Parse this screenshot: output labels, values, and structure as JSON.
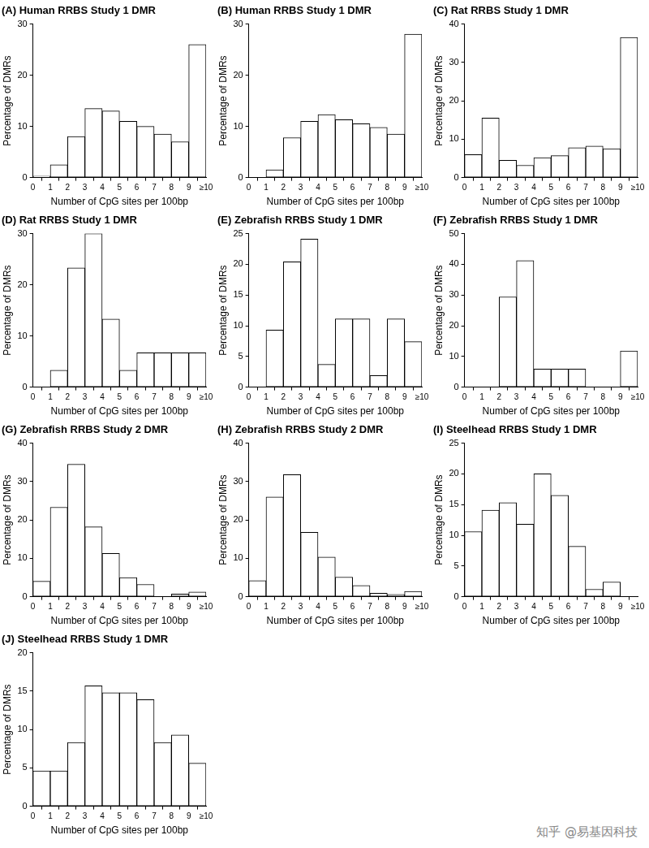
{
  "chart_data": [
    {
      "type": "histogram",
      "panel_label": "(A)",
      "title": "Human RRBS Study 1 DMR",
      "xlabel": "Number of CpG sites per 100bp",
      "ylabel": "Percentage of DMRs",
      "bins": [
        0,
        1,
        2,
        3,
        4,
        5,
        6,
        7,
        8,
        9,
        10
      ],
      "values": [
        0.3,
        2.5,
        8,
        13.5,
        13,
        11,
        10,
        8.5,
        7,
        26
      ],
      "color": "#ffffff",
      "xlim": [
        0,
        10
      ],
      "xticks": [
        0,
        1,
        2,
        3,
        4,
        5,
        6,
        7,
        8,
        9,
        {
          "value": 10,
          "label": "≥10"
        }
      ],
      "ylim": [
        0,
        30
      ],
      "yticks": [
        0,
        10,
        20,
        30
      ],
      "grid": false
    },
    {
      "type": "histogram",
      "panel_label": "(B)",
      "title": "Human RRBS Study 1 DMR",
      "xlabel": "Number of CpG sites per 100bp",
      "ylabel": "Percentage of DMRs",
      "bins": [
        0,
        1,
        2,
        3,
        4,
        5,
        6,
        7,
        8,
        9,
        10
      ],
      "values": [
        0,
        1.5,
        7.8,
        11,
        12.3,
        11.3,
        10.5,
        9.8,
        8.5,
        28
      ],
      "color": "#ffffff",
      "xlim": [
        0,
        10
      ],
      "xticks": [
        0,
        1,
        2,
        3,
        4,
        5,
        6,
        7,
        8,
        9,
        {
          "value": 10,
          "label": "≥10"
        }
      ],
      "ylim": [
        0,
        30
      ],
      "yticks": [
        0,
        10,
        20,
        30
      ],
      "grid": false
    },
    {
      "type": "histogram",
      "panel_label": "(C)",
      "title": "Rat RRBS Study 1 DMR",
      "xlabel": "Number of CpG sites per 100bp",
      "ylabel": "Percentage of DMRs",
      "bins": [
        0,
        1,
        2,
        3,
        4,
        5,
        6,
        7,
        8,
        9,
        10
      ],
      "values": [
        6,
        15.5,
        4.5,
        3.2,
        5.2,
        5.7,
        7.8,
        8.2,
        7.5,
        36.5
      ],
      "color": "#ffffff",
      "xlim": [
        0,
        10
      ],
      "xticks": [
        0,
        1,
        2,
        3,
        4,
        5,
        6,
        7,
        8,
        9,
        {
          "value": 10,
          "label": "≥10"
        }
      ],
      "ylim": [
        0,
        40
      ],
      "yticks": [
        0,
        10,
        20,
        30,
        40
      ],
      "grid": false
    },
    {
      "type": "histogram",
      "panel_label": "(D)",
      "title": "Rat RRBS Study 1 DMR",
      "xlabel": "Number of CpG sites per 100bp",
      "ylabel": "Percentage of DMRs",
      "bins": [
        0,
        1,
        2,
        3,
        4,
        5,
        6,
        7,
        8,
        9,
        10
      ],
      "values": [
        0,
        3.3,
        23.3,
        30,
        13.3,
        3.3,
        6.7,
        6.7,
        6.7,
        6.7
      ],
      "color": "#ffffff",
      "xlim": [
        0,
        10
      ],
      "xticks": [
        0,
        1,
        2,
        3,
        4,
        5,
        6,
        7,
        8,
        9,
        {
          "value": 10,
          "label": "≥10"
        }
      ],
      "ylim": [
        0,
        30
      ],
      "yticks": [
        0,
        10,
        20,
        30
      ],
      "grid": false
    },
    {
      "type": "histogram",
      "panel_label": "(E)",
      "title": "Zebrafish RRBS Study 1 DMR",
      "xlabel": "Number of CpG sites per 100bp",
      "ylabel": "Percentage of DMRs",
      "bins": [
        0,
        1,
        2,
        3,
        4,
        5,
        6,
        7,
        8,
        9,
        10
      ],
      "values": [
        0,
        9.3,
        20.4,
        24.1,
        3.7,
        11.1,
        11.1,
        1.9,
        11.1,
        7.4
      ],
      "color": "#ffffff",
      "xlim": [
        0,
        10
      ],
      "xticks": [
        0,
        1,
        2,
        3,
        4,
        5,
        6,
        7,
        8,
        9,
        {
          "value": 10,
          "label": "≥10"
        }
      ],
      "ylim": [
        0,
        25
      ],
      "yticks": [
        0,
        5,
        10,
        15,
        20,
        25
      ],
      "grid": false
    },
    {
      "type": "histogram",
      "panel_label": "(F)",
      "title": "Zebrafish RRBS Study 1 DMR",
      "xlabel": "Number of CpG sites per 100bp",
      "ylabel": "Percentage of DMRs",
      "bins": [
        0,
        1,
        2,
        3,
        4,
        5,
        6,
        7,
        8,
        9,
        10
      ],
      "values": [
        0,
        0,
        29.4,
        41.2,
        5.9,
        5.9,
        5.9,
        0,
        0,
        11.8
      ],
      "color": "#ffffff",
      "xlim": [
        0,
        10
      ],
      "xticks": [
        0,
        1,
        2,
        3,
        4,
        5,
        6,
        7,
        8,
        9,
        {
          "value": 10,
          "label": "≥10"
        }
      ],
      "ylim": [
        0,
        50
      ],
      "yticks": [
        0,
        10,
        20,
        30,
        40,
        50
      ],
      "grid": false
    },
    {
      "type": "histogram",
      "panel_label": "(G)",
      "title": "Zebrafish RRBS Study 2 DMR",
      "xlabel": "Number of CpG sites per 100bp",
      "ylabel": "Percentage of DMRs",
      "bins": [
        0,
        1,
        2,
        3,
        4,
        5,
        6,
        7,
        8,
        9,
        10
      ],
      "values": [
        4,
        23.3,
        34.5,
        18.2,
        11.3,
        5,
        3.2,
        0,
        0.7,
        1.2
      ],
      "color": "#ffffff",
      "xlim": [
        0,
        10
      ],
      "xticks": [
        0,
        1,
        2,
        3,
        4,
        5,
        6,
        7,
        8,
        9,
        {
          "value": 10,
          "label": "≥10"
        }
      ],
      "ylim": [
        0,
        40
      ],
      "yticks": [
        0,
        10,
        20,
        30,
        40
      ],
      "grid": false
    },
    {
      "type": "histogram",
      "panel_label": "(H)",
      "title": "Zebrafish RRBS Study 2 DMR",
      "xlabel": "Number of CpG sites per 100bp",
      "ylabel": "Percentage of DMRs",
      "bins": [
        0,
        1,
        2,
        3,
        4,
        5,
        6,
        7,
        8,
        9,
        10
      ],
      "values": [
        4.2,
        26,
        31.8,
        16.8,
        10.3,
        5.1,
        2.9,
        0.9,
        0.6,
        1.4
      ],
      "color": "#ffffff",
      "xlim": [
        0,
        10
      ],
      "xticks": [
        0,
        1,
        2,
        3,
        4,
        5,
        6,
        7,
        8,
        9,
        {
          "value": 10,
          "label": "≥10"
        }
      ],
      "ylim": [
        0,
        40
      ],
      "yticks": [
        0,
        10,
        20,
        30,
        40
      ],
      "grid": false
    },
    {
      "type": "histogram",
      "panel_label": "(I)",
      "title": "Steelhead RRBS Study 1 DMR",
      "xlabel": "Number of CpG sites per 100bp",
      "ylabel": "Percentage of DMRs",
      "bins": [
        0,
        1,
        2,
        3,
        4,
        5,
        6,
        7,
        8,
        9,
        10
      ],
      "values": [
        10.6,
        14.1,
        15.3,
        11.8,
        20,
        16.5,
        8.2,
        1.2,
        2.4,
        0
      ],
      "color": "#ffffff",
      "xlim": [
        0,
        10
      ],
      "xticks": [
        0,
        1,
        2,
        3,
        4,
        5,
        6,
        7,
        8,
        9,
        {
          "value": 10,
          "label": "≥10"
        }
      ],
      "ylim": [
        0,
        25
      ],
      "yticks": [
        0,
        5,
        10,
        15,
        20,
        25
      ],
      "grid": false
    },
    {
      "type": "histogram",
      "panel_label": "(J)",
      "title": "Steelhead RRBS Study 1 DMR",
      "xlabel": "Number of CpG sites per 100bp",
      "ylabel": "Percentage of DMRs",
      "bins": [
        0,
        1,
        2,
        3,
        4,
        5,
        6,
        7,
        8,
        9,
        10
      ],
      "values": [
        4.6,
        4.6,
        8.3,
        15.7,
        14.8,
        14.8,
        13.9,
        8.3,
        9.3,
        5.6
      ],
      "color": "#ffffff",
      "xlim": [
        0,
        10
      ],
      "xticks": [
        0,
        1,
        2,
        3,
        4,
        5,
        6,
        7,
        8,
        9,
        {
          "value": 10,
          "label": "≥10"
        }
      ],
      "ylim": [
        0,
        20
      ],
      "yticks": [
        0,
        5,
        10,
        15,
        20
      ],
      "grid": false
    }
  ],
  "watermark": "知乎 @易基因科技"
}
